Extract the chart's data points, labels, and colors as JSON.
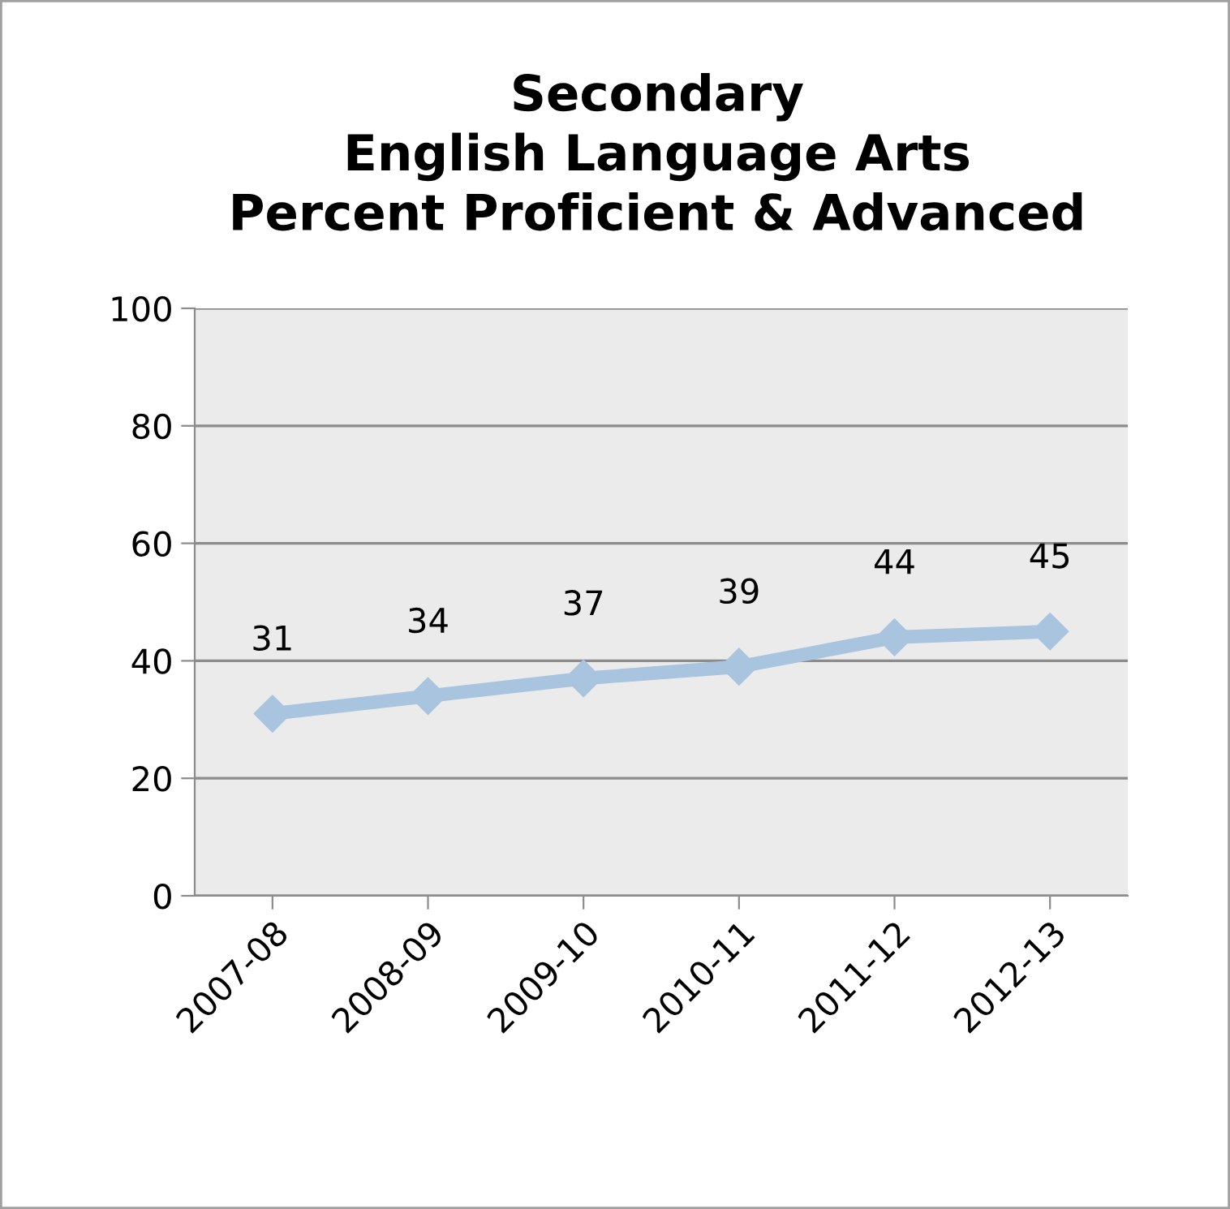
{
  "chart_data": {
    "type": "line",
    "title": "Secondary\nEnglish Language Arts\nPercent Proficient & Advanced",
    "categories": [
      "2007-08",
      "2008-09",
      "2009-10",
      "2010-11",
      "2011-12",
      "2012-13"
    ],
    "series": [
      {
        "color": "#a9c4de",
        "values": [
          31,
          34,
          37,
          39,
          44,
          45
        ]
      }
    ],
    "ylim": [
      0,
      100
    ],
    "yticks": [
      0,
      20,
      40,
      60,
      80,
      100
    ],
    "grid": "y",
    "marker": "diamond",
    "line_style": "solid",
    "data_labels": true
  }
}
